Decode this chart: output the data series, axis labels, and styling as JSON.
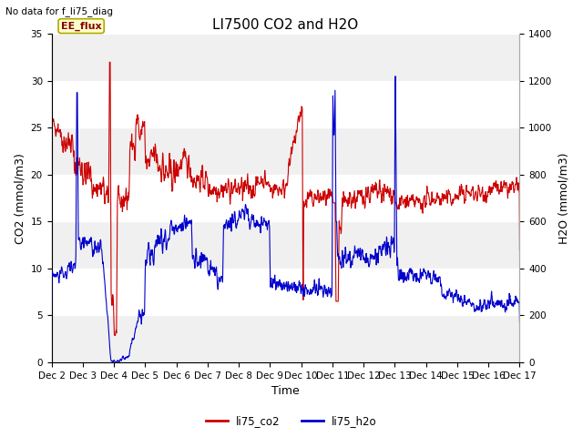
{
  "title": "LI7500 CO2 and H2O",
  "top_left_text": "No data for f_li75_diag",
  "xlabel": "Time",
  "ylabel_left": "CO2 (mmol/m3)",
  "ylabel_right": "H2O (mmol/m3)",
  "ylim_left": [
    0,
    35
  ],
  "ylim_right": [
    0,
    1400
  ],
  "yticks_left": [
    0,
    5,
    10,
    15,
    20,
    25,
    30,
    35
  ],
  "yticks_right": [
    0,
    200,
    400,
    600,
    800,
    1000,
    1200,
    1400
  ],
  "xtick_labels": [
    "Dec 2",
    "Dec 3",
    "Dec 4",
    "Dec 5",
    "Dec 6",
    "Dec 7",
    "Dec 8",
    "Dec 9",
    "Dec 10",
    "Dec 11",
    "Dec 12",
    "Dec 13",
    "Dec 14",
    "Dec 15",
    "Dec 16",
    "Dec 17"
  ],
  "co2_color": "#cc0000",
  "h2o_color": "#0000cc",
  "legend_label_co2": "li75_co2",
  "legend_label_h2o": "li75_h2o",
  "ee_flux_label": "EE_flux",
  "ee_flux_box_color": "#ffffcc",
  "ee_flux_border_color": "#aaaa00",
  "background_color": "#ffffff",
  "band_color_light": "#f0f0f0",
  "band_color_dark": "#e0e0e0",
  "linewidth": 0.8,
  "title_fontsize": 11,
  "axis_label_fontsize": 9,
  "tick_fontsize": 7.5
}
